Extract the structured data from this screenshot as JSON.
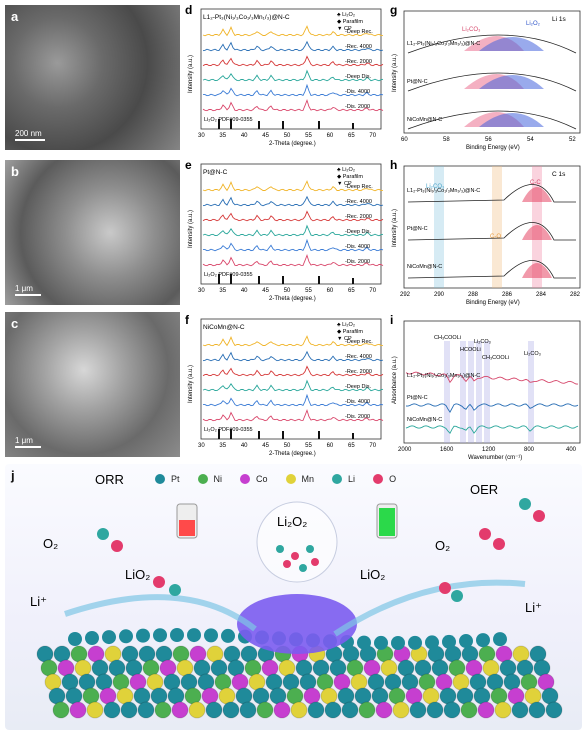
{
  "sem": {
    "panels": [
      {
        "tag": "a",
        "scale": "200 nm"
      },
      {
        "tag": "b",
        "scale": "1 μm"
      },
      {
        "tag": "c",
        "scale": "1 μm"
      }
    ]
  },
  "xrd": {
    "d": {
      "tag": "d",
      "title": "L1₂-Pt₃(Ni₁/₃Co₁/₃Mn₁/₃)@N-C",
      "labels": [
        "-Deep Rec.",
        "-Rec. 4000",
        "-Rec. 2000",
        "-Deep Dis.",
        "-Dis. 4000",
        "-Dis. 2000"
      ],
      "legend": [
        "♣ Li₂O₂",
        "◆ Parafilm",
        "▼ CP"
      ],
      "pdf": "Li₂O₂ PDF#09-0355",
      "xlabel": "2-Theta (degree.)",
      "ylabel": "Intensity (a.u.)",
      "ticks": [
        "30",
        "35",
        "40",
        "45",
        "50",
        "55",
        "60",
        "65",
        "70"
      ]
    },
    "e": {
      "tag": "e",
      "title": "Pt@N-C",
      "labels": [
        "-Deep Rec.",
        "-Rec. 4000",
        "-Rec. 2000",
        "-Deep Dis.",
        "-Dis. 4000",
        "-Dis. 2000"
      ],
      "legend": [
        "♣ Li₂O₂",
        "◆ Parafilm",
        "▼ CP"
      ],
      "pdf": "Li₂O₂ PDF#09-0355",
      "xlabel": "2-Theta (degree.)",
      "ylabel": "Intensity (a.u.)",
      "ticks": [
        "30",
        "35",
        "40",
        "45",
        "50",
        "55",
        "60",
        "65",
        "70"
      ]
    },
    "f": {
      "tag": "f",
      "title": "NiCoMn@N-C",
      "labels": [
        "-Deep Rec.",
        "-Rec. 4000",
        "-Rec. 2000",
        "-Deep Dis.",
        "-Dis. 4000",
        "-Dis. 2000"
      ],
      "legend": [
        "♣ Li₂O₂",
        "◆ Parafilm",
        "▼ CP"
      ],
      "pdf": "Li₂O₂ PDF#09-0355",
      "xlabel": "2-Theta (degree.)",
      "ylabel": "Intensity (a.u.)",
      "ticks": [
        "30",
        "35",
        "40",
        "45",
        "50",
        "55",
        "60",
        "65",
        "70"
      ]
    }
  },
  "xps_g": {
    "tag": "g",
    "corner": "Li 1s",
    "peak1": "Li₂CO₃",
    "peak2": "Li₂O₂",
    "samples": [
      "L1₂-Pt₃(Ni₁/₃Co₁/₃Mn₁/₃)@N-C",
      "Pt@N-C",
      "NiCoMn@N-C"
    ],
    "xlabel": "Binding Energy (eV)",
    "ylabel": "Intensity (a.u.)",
    "ticks": [
      "60",
      "58",
      "56",
      "54",
      "52"
    ]
  },
  "xps_h": {
    "tag": "h",
    "corner": "C 1s",
    "bands": [
      "Li₂CO₃",
      "C-O",
      "C-C"
    ],
    "samples": [
      "L1₂-Pt₃(Ni₁/₃Co₁/₃Mn₁/₃)@N-C",
      "Pt@N-C",
      "NiCoMn@N-C"
    ],
    "xlabel": "Binding Energy (eV)",
    "ylabel": "Intensity (a.u.)",
    "ticks": [
      "292",
      "290",
      "288",
      "286",
      "284",
      "282"
    ]
  },
  "ir_i": {
    "tag": "i",
    "annotations": [
      "CH₃COOLi",
      "HCOOLi",
      "Li₂CO₃",
      "CH₃COOLi",
      "Li₂CO₃"
    ],
    "samples": [
      "L1₂-Pt₃(Ni₁/₃Co₁/₃Mn₁/₃)@N-C",
      "Pt@N-C",
      "NiCoMn@N-C"
    ],
    "xlabel": "Wavenumber (cm⁻¹)",
    "ylabel": "Absorbance (a.u.)",
    "ticks": [
      "2000",
      "1600",
      "1200",
      "800",
      "400"
    ]
  },
  "schematic": {
    "tag": "j",
    "legend": [
      {
        "label": "Pt",
        "color": "#1f8a9a"
      },
      {
        "label": "Ni",
        "color": "#4caf50"
      },
      {
        "label": "Co",
        "color": "#c63fd0"
      },
      {
        "label": "Mn",
        "color": "#e0d23a"
      },
      {
        "label": "Li",
        "color": "#2fa7a0"
      },
      {
        "label": "O",
        "color": "#e33b6c"
      }
    ],
    "orr": "ORR",
    "oer": "OER",
    "o2_left": "O₂",
    "o2_right": "O₂",
    "lio2_left": "LiO₂",
    "lio2_right": "LiO₂",
    "li2o2": "Li₂O₂",
    "li_left": "Li⁺",
    "li_right": "Li⁺"
  }
}
